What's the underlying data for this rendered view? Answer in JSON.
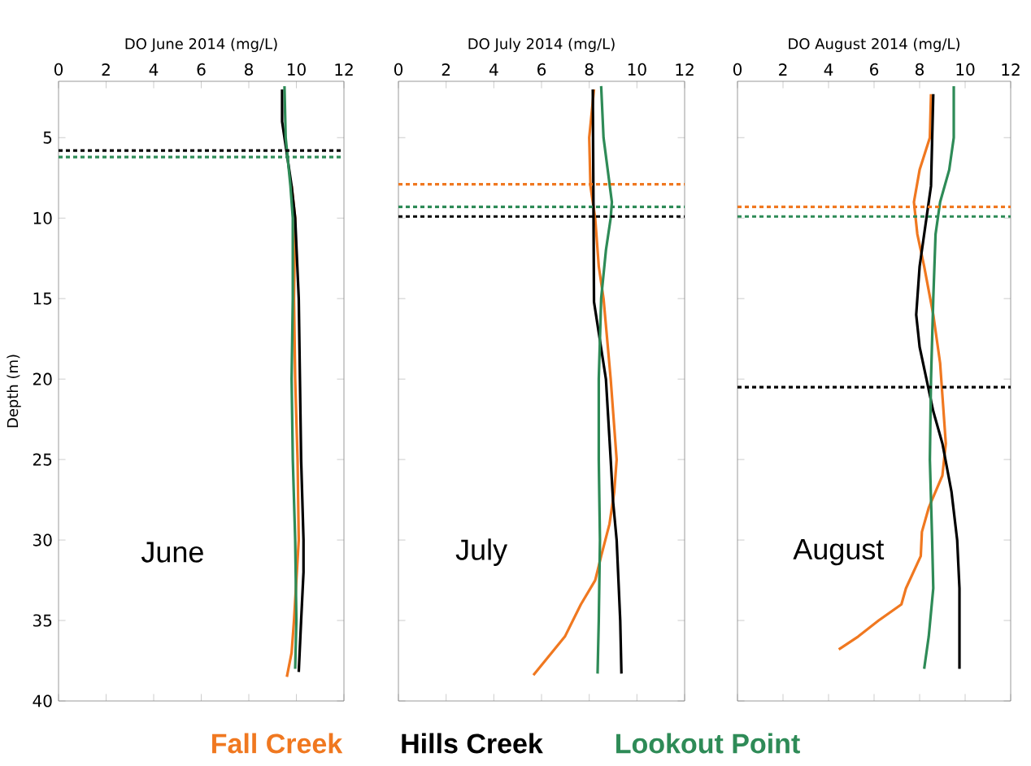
{
  "chart_data": [
    {
      "type": "line",
      "xlabel": "DO June 2014 (mg/L)",
      "ylabel": "Depth (m)",
      "xlim": [
        0,
        12
      ],
      "xticks": [
        0,
        2,
        4,
        6,
        8,
        10,
        12
      ],
      "ylim": [
        40,
        1.5
      ],
      "yticks": [
        5,
        10,
        15,
        20,
        25,
        30,
        35,
        40
      ],
      "annotations": [
        "June"
      ],
      "series": [
        {
          "color": "#f07820",
          "x": [
            9.8,
            9.95,
            9.9,
            9.95,
            10.05,
            10.1,
            9.9,
            9.8,
            9.6
          ],
          "values": [
            8,
            10,
            15,
            20,
            25,
            30,
            35,
            37,
            38.5
          ]
        },
        {
          "color": "#000000",
          "x": [
            9.4,
            9.4,
            9.6,
            9.8,
            9.95,
            10.1,
            10.15,
            10.2,
            10.3,
            10.3,
            10.2,
            10.1
          ],
          "values": [
            2,
            4,
            6,
            8,
            10,
            15,
            20,
            25,
            30,
            32,
            35,
            38.2
          ]
        },
        {
          "color": "#2e8b57",
          "x": [
            9.5,
            9.55,
            9.75,
            9.85,
            9.85,
            9.8,
            9.85,
            9.95,
            10.0,
            9.95
          ],
          "values": [
            1.8,
            5,
            8,
            10,
            15,
            20,
            25,
            30,
            35,
            38
          ]
        }
      ],
      "ref_lines": [
        {
          "axis": "y",
          "value": 5.8,
          "color": "#000000",
          "line_style": "dotted"
        },
        {
          "axis": "y",
          "value": 6.2,
          "color": "#2e8b57",
          "line_style": "dotted"
        }
      ]
    },
    {
      "type": "line",
      "xlabel": "DO July 2014 (mg/L)",
      "xlim": [
        0,
        12
      ],
      "xticks": [
        0,
        2,
        4,
        6,
        8,
        10,
        12
      ],
      "ylim": [
        40,
        1.5
      ],
      "yticks": [
        5,
        10,
        15,
        20,
        25,
        30,
        35,
        40
      ],
      "tick_labels": "x",
      "annotations": [
        "July"
      ],
      "legend": "bottom",
      "series": [
        {
          "name": "Fall Creek",
          "color": "#f07820",
          "x": [
            8.2,
            8.0,
            8.05,
            8.25,
            8.4,
            8.6,
            8.9,
            9.15,
            9.05,
            8.85,
            8.5,
            8.25,
            7.65,
            6.98,
            5.66
          ],
          "values": [
            2,
            5,
            8,
            10,
            13,
            15,
            20,
            25,
            27,
            29,
            31,
            32.5,
            34,
            36,
            38.4
          ]
        },
        {
          "name": "Hills Creek",
          "color": "#000000",
          "x": [
            8.15,
            8.2,
            8.7,
            8.9,
            9.0,
            9.15,
            9.3,
            9.35
          ],
          "values": [
            2,
            15.2,
            20,
            25,
            27.6,
            30,
            35,
            38.3
          ]
        },
        {
          "name": "Lookout Point",
          "color": "#2e8b57",
          "x": [
            8.5,
            8.6,
            8.95,
            8.9,
            8.7,
            8.5,
            8.4,
            8.4,
            8.45,
            8.4,
            8.35
          ],
          "values": [
            1.8,
            5,
            9,
            10,
            12,
            15,
            20,
            25,
            30,
            35,
            38.3
          ]
        }
      ],
      "ref_lines": [
        {
          "axis": "y",
          "value": 7.9,
          "color": "#f07820",
          "line_style": "dotted"
        },
        {
          "axis": "y",
          "value": 9.3,
          "color": "#2e8b57",
          "line_style": "dotted"
        },
        {
          "axis": "y",
          "value": 9.9,
          "color": "#000000",
          "line_style": "dotted"
        }
      ]
    },
    {
      "type": "line",
      "xlabel": "DO August 2014 (mg/L)",
      "xlim": [
        0,
        12
      ],
      "xticks": [
        0,
        2,
        4,
        6,
        8,
        10,
        12
      ],
      "ylim": [
        40,
        1.5
      ],
      "yticks": [
        5,
        10,
        15,
        20,
        25,
        30,
        35,
        40
      ],
      "tick_labels": "x",
      "annotations": [
        "August"
      ],
      "series": [
        {
          "color": "#f07820",
          "x": [
            8.5,
            8.45,
            8.0,
            7.75,
            7.9,
            8.2,
            8.6,
            8.9,
            9.05,
            9.15,
            9.0,
            8.4,
            8.1,
            8.05,
            7.4,
            7.2,
            6.2,
            5.3,
            4.45
          ],
          "values": [
            2.3,
            5,
            7,
            9,
            11,
            13,
            16,
            19,
            22,
            24,
            26,
            28,
            29.5,
            31,
            33,
            34,
            35,
            36,
            36.8
          ]
        },
        {
          "color": "#000000",
          "x": [
            8.6,
            8.5,
            8.0,
            7.85,
            8.0,
            8.3,
            8.6,
            9.0,
            9.4,
            9.65,
            9.75,
            9.75
          ],
          "values": [
            2.3,
            8,
            13,
            16,
            18,
            20,
            22,
            24,
            27,
            30,
            33,
            38
          ]
        },
        {
          "color": "#2e8b57",
          "x": [
            9.5,
            9.5,
            9.3,
            8.9,
            8.7,
            8.6,
            8.5,
            8.45,
            8.55,
            8.6,
            8.4,
            8.2
          ],
          "values": [
            1.8,
            5,
            7,
            9,
            11,
            15,
            20,
            25,
            30,
            33,
            36,
            38
          ]
        }
      ],
      "ref_lines": [
        {
          "axis": "y",
          "value": 9.3,
          "color": "#f07820",
          "line_style": "dotted"
        },
        {
          "axis": "y",
          "value": 9.9,
          "color": "#2e8b57",
          "line_style": "dotted"
        },
        {
          "axis": "y",
          "value": 20.5,
          "color": "#000000",
          "line_style": "dotted"
        }
      ]
    }
  ]
}
